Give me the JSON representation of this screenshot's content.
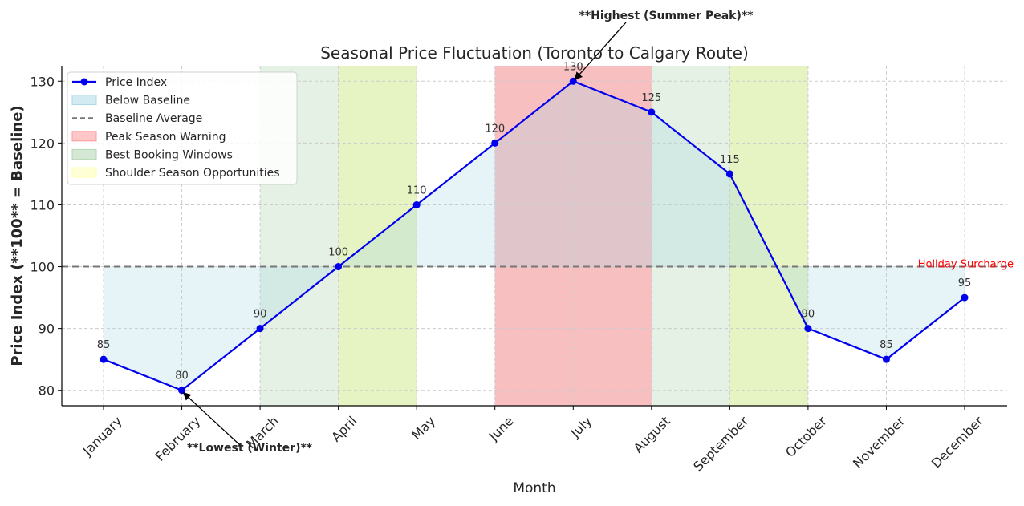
{
  "chart_data": {
    "type": "line",
    "title": "Seasonal Price Fluctuation (Toronto to Calgary Route)",
    "xlabel": "Month",
    "ylabel": "Price Index (**100** = Baseline)",
    "categories": [
      "January",
      "February",
      "March",
      "April",
      "May",
      "June",
      "July",
      "August",
      "September",
      "October",
      "November",
      "December"
    ],
    "series": [
      {
        "name": "Price Index",
        "values": [
          85,
          80,
          90,
          100,
          110,
          120,
          130,
          125,
          115,
          90,
          85,
          95
        ],
        "color": "#0000ee"
      }
    ],
    "baseline": {
      "name": "Baseline Average",
      "value": 100,
      "color": "#777777"
    },
    "ylim": [
      77.5,
      132.5
    ],
    "yticks": [
      80,
      90,
      100,
      110,
      120,
      130
    ],
    "grid": true,
    "legend_position": "top-left",
    "shaded_regions": [
      {
        "name": "Best Booking Windows",
        "from": "March",
        "to": "May",
        "color": "#b3d6b3"
      },
      {
        "name": "Shoulder Season Opportunities",
        "from": "April",
        "to": "May",
        "color": "#e8f79a"
      },
      {
        "name": "Peak Season Warning",
        "from": "June",
        "to": "August",
        "color": "#f08080"
      },
      {
        "name": "Best Booking Windows",
        "from": "August",
        "to": "October",
        "color": "#b3d6b3"
      },
      {
        "name": "Shoulder Season Opportunities",
        "from": "September",
        "to": "October",
        "color": "#e8f79a"
      }
    ],
    "fill_names": {
      "below": "Below Baseline",
      "above": ""
    },
    "fill_colors": {
      "below": "#add8e6",
      "above": "#add8e6"
    },
    "annotations": [
      {
        "text": "**Highest (Summer Peak)**",
        "target": "July",
        "value": 130
      },
      {
        "text": "**Lowest (Winter)**",
        "target": "February",
        "value": 80
      },
      {
        "text": "Holiday Surcharge",
        "target": "December",
        "value": 100,
        "color": "#ff0000"
      }
    ],
    "legend": [
      {
        "label": "Price Index",
        "kind": "line-marker",
        "color": "#0000ee"
      },
      {
        "label": "Below Baseline",
        "kind": "patch",
        "color": "#add8e6"
      },
      {
        "label": "Baseline Average",
        "kind": "dashed",
        "color": "#777777"
      },
      {
        "label": "Peak Season Warning",
        "kind": "patch",
        "color": "#ff9999"
      },
      {
        "label": "Best Booking Windows",
        "kind": "patch",
        "color": "#b3d6b3"
      },
      {
        "label": "Shoulder Season Opportunities",
        "kind": "patch",
        "color": "#ffffb3"
      }
    ]
  }
}
